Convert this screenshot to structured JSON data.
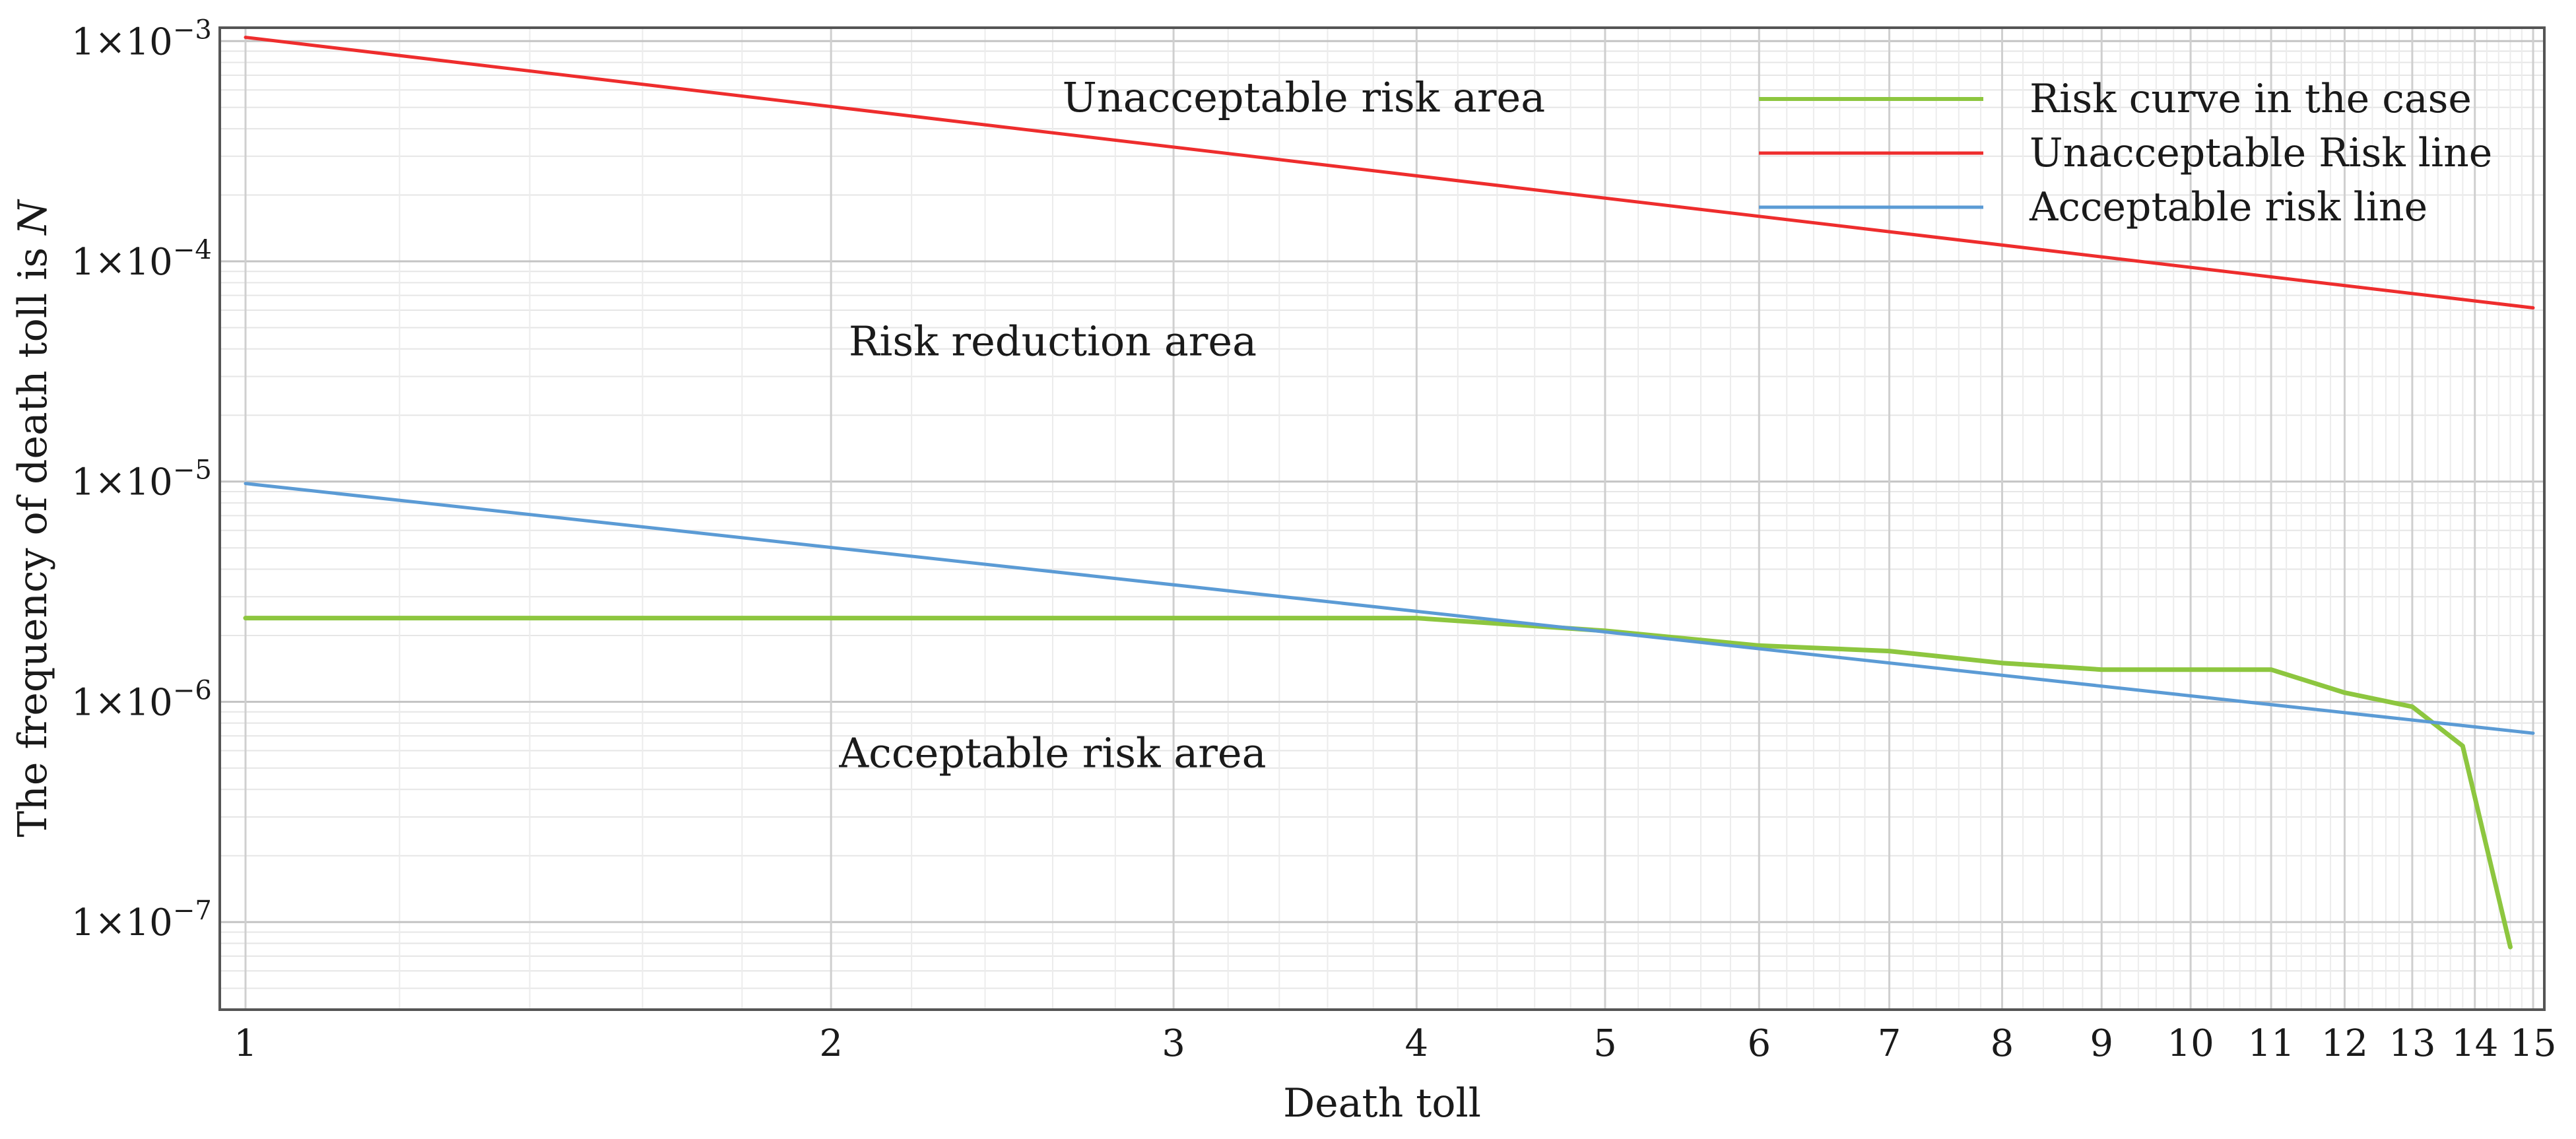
{
  "chart_data": {
    "type": "line",
    "title": "",
    "xlabel": "Death toll",
    "ylabel": "The frequency of death toll is N",
    "x_scale": "log",
    "y_scale": "log",
    "xlim": [
      0.97,
      15.2
    ],
    "ylim": [
      4e-08,
      0.00115
    ],
    "x_ticks": [
      1,
      2,
      3,
      4,
      5,
      6,
      7,
      8,
      9,
      10,
      11,
      12,
      13,
      14,
      15
    ],
    "x_tick_labels": [
      "1",
      "2",
      "3",
      "4",
      "5",
      "6",
      "7",
      "8",
      "9",
      "10",
      "11",
      "12",
      "13",
      "14",
      "15"
    ],
    "y_ticks": [
      0.001,
      0.0001,
      1e-05,
      1e-06,
      1e-07
    ],
    "y_tick_labels": [
      {
        "mantissa": "1×10",
        "exponent": "−3"
      },
      {
        "mantissa": "1×10",
        "exponent": "−4"
      },
      {
        "mantissa": "1×10",
        "exponent": "−5"
      },
      {
        "mantissa": "1×10",
        "exponent": "−6"
      },
      {
        "mantissa": "1×10",
        "exponent": "−7"
      }
    ],
    "grid": true,
    "legend_position": "top-right",
    "series": [
      {
        "name": "Risk curve in the case",
        "color": "#8dc63f",
        "x": [
          1,
          4,
          5,
          6,
          7,
          8,
          9,
          10,
          11,
          12,
          13,
          13.8,
          14.6
        ],
        "y": [
          2.4e-06,
          2.4e-06,
          2.1e-06,
          1.8e-06,
          1.7e-06,
          1.5e-06,
          1.4e-06,
          1.4e-06,
          1.4e-06,
          1.1e-06,
          9.5e-07,
          6.3e-07,
          7.7e-08
        ]
      },
      {
        "name": "Unacceptable Risk line",
        "color": "#ee2d2d",
        "x": [
          1,
          15
        ],
        "y": [
          0.00104,
          6.15e-05
        ]
      },
      {
        "name": "Acceptable risk line",
        "color": "#5b9bd5",
        "x": [
          1,
          15
        ],
        "y": [
          9.8e-06,
          7.2e-07
        ]
      }
    ],
    "annotations": [
      {
        "text": "Unacceptable risk area",
        "x": 3.5,
        "y": 0.00055
      },
      {
        "text": "Risk reduction area",
        "x": 2.6,
        "y": 4.3e-05
      },
      {
        "text": "Acceptable risk area",
        "x": 2.6,
        "y": 5.8e-07
      }
    ]
  }
}
